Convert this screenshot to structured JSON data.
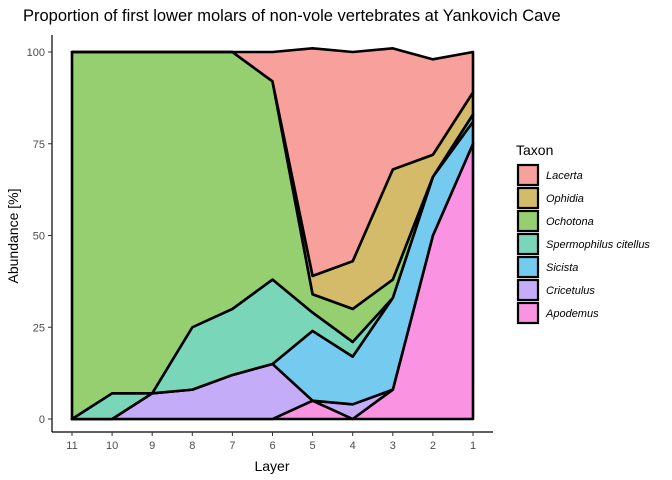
{
  "chart_data": {
    "type": "area",
    "title": "Proportion of first lower molars of non-vole vertebrates at Yankovich Cave",
    "xlabel": "Layer",
    "ylabel": "Abundance [%]",
    "x": [
      11,
      10,
      9,
      8,
      7,
      6,
      5,
      4,
      3,
      2,
      1
    ],
    "x_reversed": true,
    "ylim": [
      0,
      100
    ],
    "y_ticks": [
      0,
      25,
      50,
      75,
      100
    ],
    "grid": false,
    "stacked": true,
    "legend": {
      "title": "Taxon",
      "placement": "right"
    },
    "series": [
      {
        "name": "Lacerta",
        "color": "#f8a09c",
        "values": [
          0,
          0,
          0,
          0,
          0,
          8,
          62,
          57,
          33,
          26,
          11
        ]
      },
      {
        "name": "Ophidia",
        "color": "#d4bb6a",
        "values": [
          0,
          0,
          0,
          0,
          0,
          0,
          5,
          13,
          30,
          6,
          6
        ]
      },
      {
        "name": "Ochotona",
        "color": "#96cf6f",
        "values": [
          100,
          93,
          93,
          75,
          70,
          54,
          5,
          9,
          5,
          0,
          0
        ]
      },
      {
        "name": "Spermophilus citellus",
        "color": "#79d6b8",
        "values": [
          0,
          7,
          0,
          17,
          18,
          23,
          5,
          4,
          0,
          0,
          2
        ]
      },
      {
        "name": "Sicista",
        "color": "#74cbef",
        "values": [
          0,
          0,
          0,
          0,
          0,
          0,
          19,
          13,
          25,
          16,
          6
        ]
      },
      {
        "name": "Cricetulus",
        "color": "#c4acf9",
        "values": [
          0,
          0,
          7,
          8,
          12,
          15,
          0,
          4,
          0,
          0,
          0
        ]
      },
      {
        "name": "Apodemus",
        "color": "#f993e2",
        "values": [
          0,
          0,
          0,
          0,
          0,
          0,
          5,
          0,
          8,
          50,
          75
        ]
      }
    ]
  }
}
